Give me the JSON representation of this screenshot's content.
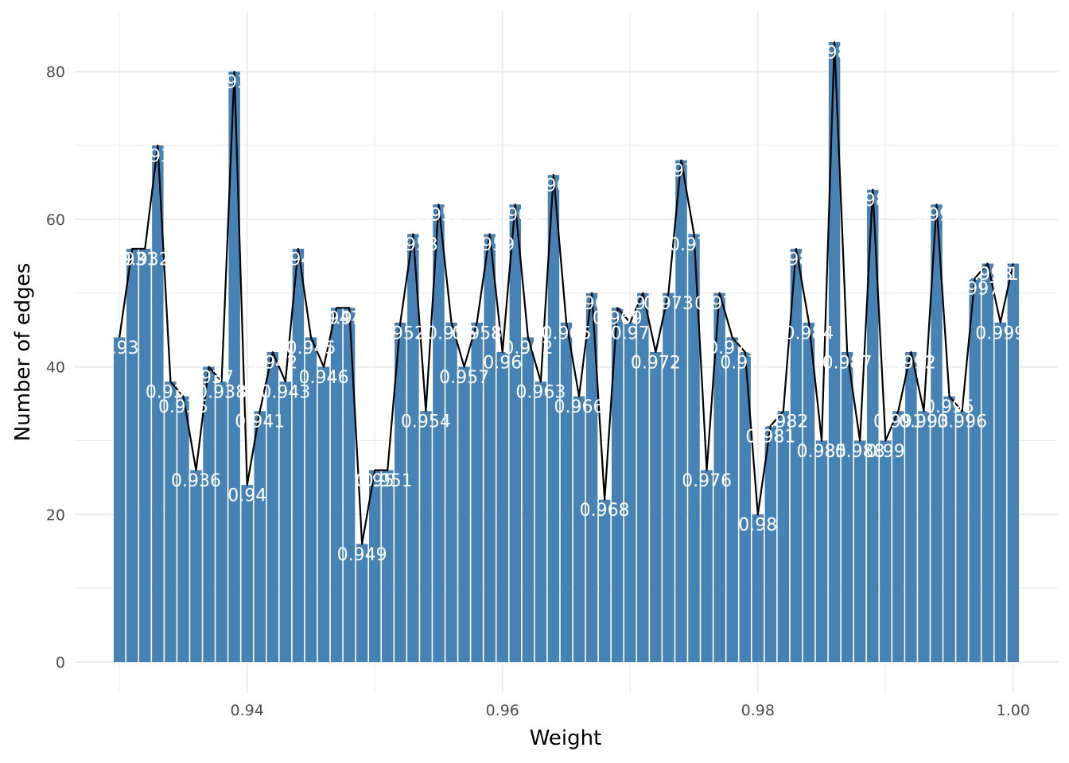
{
  "chart_data": {
    "type": "bar",
    "xlabel": "Weight",
    "ylabel": "Number of edges",
    "xlim": [
      0.9265,
      1.0035
    ],
    "ylim": [
      -4.2,
      88.2
    ],
    "x_ticks": [
      0.94,
      0.96,
      0.98,
      1.0
    ],
    "x_tick_labels": [
      "0.94",
      "0.96",
      "0.98",
      "1.00"
    ],
    "y_ticks": [
      0,
      20,
      40,
      60,
      80
    ],
    "y_tick_labels": [
      "0",
      "20",
      "40",
      "60",
      "80"
    ],
    "bar_color": "#4682B4",
    "line_color": "#000000",
    "label_color": "#ffffff",
    "grid": true,
    "legend": "none",
    "series": [
      {
        "x": [
          0.93,
          0.931,
          0.932,
          0.933,
          0.934,
          0.935,
          0.936,
          0.937,
          0.938,
          0.939,
          0.94,
          0.941,
          0.942,
          0.943,
          0.944,
          0.945,
          0.946,
          0.947,
          0.948,
          0.949,
          0.95,
          0.951,
          0.952,
          0.953,
          0.954,
          0.955,
          0.956,
          0.957,
          0.958,
          0.959,
          0.96,
          0.961,
          0.962,
          0.963,
          0.964,
          0.965,
          0.966,
          0.967,
          0.968,
          0.969,
          0.97,
          0.971,
          0.972,
          0.973,
          0.974,
          0.975,
          0.976,
          0.977,
          0.978,
          0.979,
          0.98,
          0.981,
          0.982,
          0.983,
          0.984,
          0.985,
          0.986,
          0.987,
          0.988,
          0.989,
          0.99,
          0.991,
          0.992,
          0.993,
          0.994,
          0.995,
          0.996,
          0.997,
          0.998,
          0.999,
          1.0
        ],
        "values": [
          44,
          56,
          56,
          70,
          38,
          36,
          26,
          40,
          38,
          80,
          24,
          34,
          42,
          38,
          56,
          44,
          40,
          48,
          48,
          16,
          26,
          26,
          46,
          58,
          34,
          62,
          46,
          40,
          46,
          58,
          42,
          62,
          44,
          38,
          66,
          46,
          36,
          50,
          22,
          48,
          46,
          50,
          42,
          50,
          68,
          58,
          26,
          50,
          44,
          42,
          20,
          32,
          34,
          56,
          46,
          30,
          84,
          42,
          30,
          64,
          30,
          34,
          42,
          34,
          62,
          36,
          34,
          52,
          54,
          46,
          54
        ],
        "labels": [
          "0.93",
          "0.931",
          "0.932",
          "0.933",
          "0.934",
          "0.935",
          "0.936",
          "0.937",
          "0.938",
          "0.939",
          "0.94",
          "0.941",
          "0.942",
          "0.943",
          "0.944",
          "0.945",
          "0.946",
          "0.947",
          "0.948",
          "0.949",
          "0.95",
          "0.951",
          "0.952",
          "0.953",
          "0.954",
          "0.955",
          "0.956",
          "0.957",
          "0.958",
          "0.959",
          "0.96",
          "0.961",
          "0.962",
          "0.963",
          "0.964",
          "0.965",
          "0.966",
          "0.967",
          "0.968",
          "0.969",
          "0.97",
          "0.971",
          "0.972",
          "0.973",
          "0.974",
          "0.975",
          "0.976",
          "0.977",
          "0.978",
          "0.979",
          "0.98",
          "0.981",
          "0.982",
          "0.983",
          "0.984",
          "0.985",
          "0.986",
          "0.987",
          "0.988",
          "0.989",
          "0.99",
          "0.991",
          "0.992",
          "0.993",
          "0.994",
          "0.995",
          "0.996",
          "0.997",
          "0.998",
          "0.999",
          "1"
        ]
      }
    ]
  }
}
